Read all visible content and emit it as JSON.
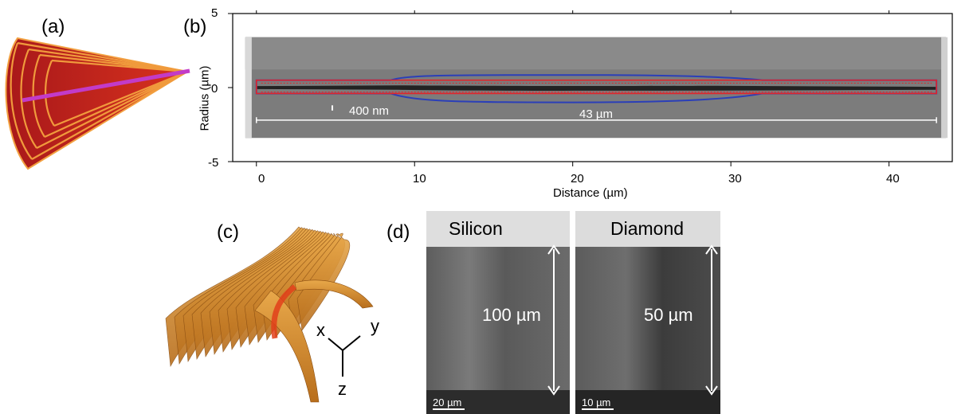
{
  "panels": {
    "a": {
      "label": "(a)"
    },
    "b": {
      "label": "(b)",
      "chart_data": {
        "type": "image-plot",
        "xlabel": "Distance (µm)",
        "ylabel": "Radius (µm)",
        "xlim": [
          -1.5,
          44
        ],
        "ylim": [
          -5,
          5
        ],
        "x_ticks": [
          "0",
          "10",
          "20",
          "30",
          "40"
        ],
        "y_ticks": [
          "5",
          "0",
          "-5"
        ],
        "annotations": {
          "width_marker": "400 nm",
          "length_marker": "43 µm"
        },
        "length_marker_span": [
          0,
          43
        ],
        "colors": {
          "outline_blue": "#2b3fb8",
          "outline_red": "#e0242a",
          "dashed_red": "#e0242a"
        }
      }
    },
    "c": {
      "label": "(c)",
      "axes": {
        "x": "x",
        "y": "y",
        "z": "z"
      },
      "colors": {
        "surface": "#d9912e",
        "core": "#e2401a"
      }
    },
    "d": {
      "label": "(d)",
      "images": [
        {
          "title": "Silicon",
          "dimension": "100 µm",
          "scale_bar": "20 µm"
        },
        {
          "title": "Diamond",
          "dimension": "50 µm",
          "scale_bar": "10 µm"
        }
      ]
    }
  }
}
